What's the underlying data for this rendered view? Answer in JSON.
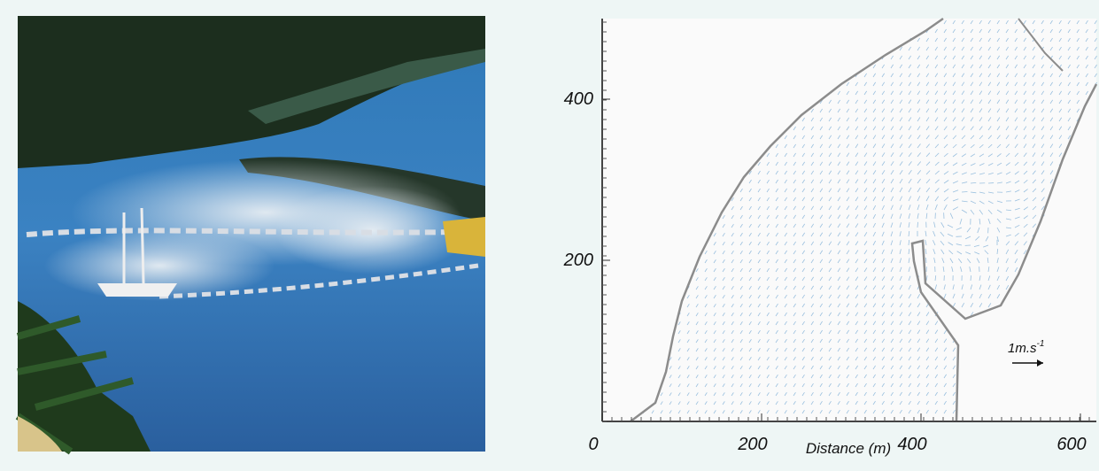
{
  "chart_data": {
    "type": "quiver",
    "x_label": "Distance (m)",
    "xlim": [
      0,
      620
    ],
    "xticks": [
      0,
      200,
      400,
      600
    ],
    "ylim": [
      0,
      500
    ],
    "yticks": [
      200,
      400
    ],
    "key_label": "1m.s",
    "key_exponent": "-1",
    "color": "#4a90c8"
  }
}
